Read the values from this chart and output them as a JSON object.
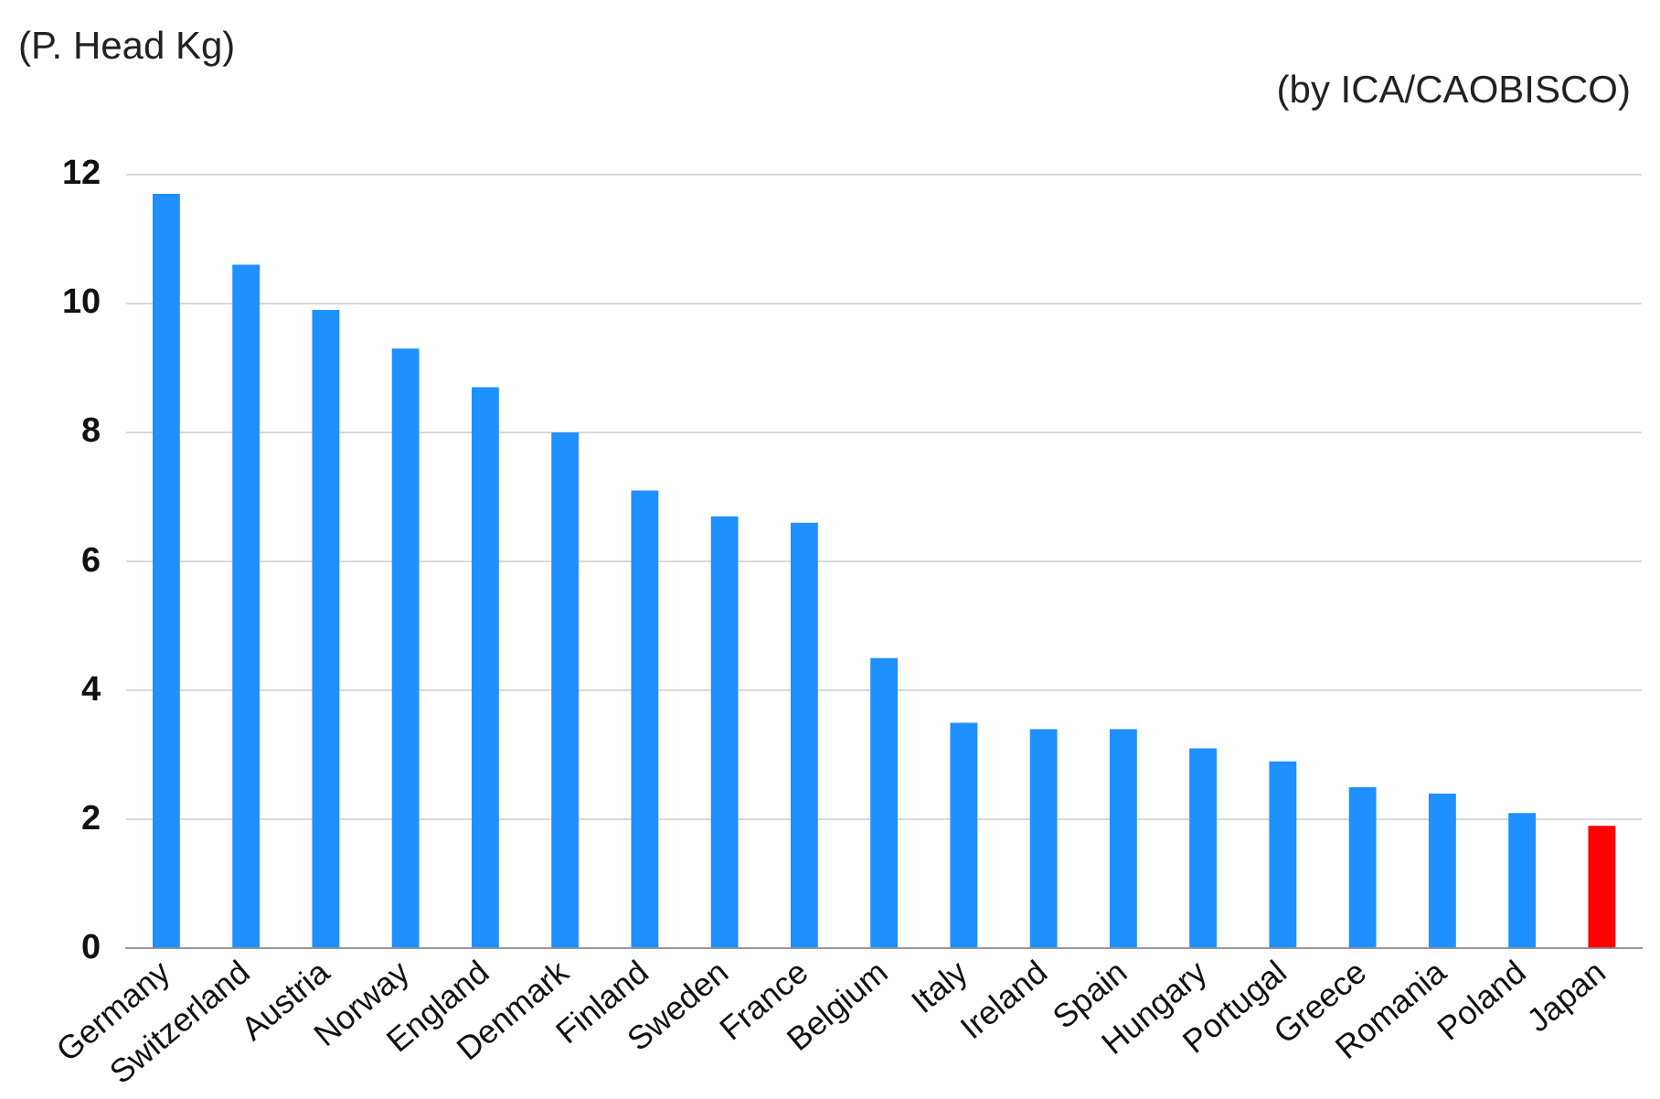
{
  "chart_data": {
    "type": "bar",
    "ylabel": "(P. Head Kg)",
    "annotations": [
      "(by ICA/CAOBISCO)"
    ],
    "categories": [
      "Germany",
      "Switzerland",
      "Austria",
      "Norway",
      "England",
      "Denmark",
      "Finland",
      "Sweden",
      "France",
      "Belgium",
      "Italy",
      "Ireland",
      "Spain",
      "Hungary",
      "Portugal",
      "Greece",
      "Romania",
      "Poland",
      "Japan"
    ],
    "values": [
      11.7,
      10.6,
      9.9,
      9.3,
      8.7,
      8.0,
      7.1,
      6.7,
      6.6,
      4.5,
      3.5,
      3.4,
      3.4,
      3.1,
      2.9,
      2.5,
      2.4,
      2.1,
      1.9
    ],
    "colors": [
      "#1e90ff",
      "#1e90ff",
      "#1e90ff",
      "#1e90ff",
      "#1e90ff",
      "#1e90ff",
      "#1e90ff",
      "#1e90ff",
      "#1e90ff",
      "#1e90ff",
      "#1e90ff",
      "#1e90ff",
      "#1e90ff",
      "#1e90ff",
      "#1e90ff",
      "#1e90ff",
      "#1e90ff",
      "#1e90ff",
      "#ff0000"
    ],
    "ylim": [
      0,
      12
    ],
    "yticks": [
      0,
      2,
      4,
      6,
      8,
      10,
      12
    ],
    "grid": "y",
    "legend": false
  }
}
